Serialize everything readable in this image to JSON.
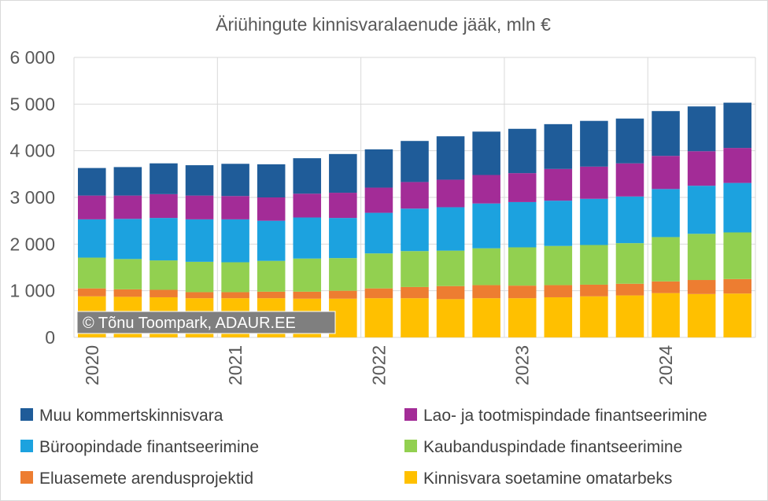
{
  "chart_data": {
    "type": "bar",
    "stacked": true,
    "title": "Äriühingute kinnisvaralaenude jääk, mln €",
    "xlabel": "",
    "ylabel": "",
    "ylim": [
      0,
      6000
    ],
    "yticks": [
      0,
      1000,
      2000,
      3000,
      4000,
      5000,
      6000
    ],
    "ytick_labels": [
      "0",
      "1 000",
      "2 000",
      "3 000",
      "4 000",
      "5 000",
      "6 000"
    ],
    "x_year_labels": [
      "2020",
      "2021",
      "2022",
      "2023",
      "2024"
    ],
    "categories": [
      "2020-Q1",
      "2020-Q2",
      "2020-Q3",
      "2020-Q4",
      "2021-Q1",
      "2021-Q2",
      "2021-Q3",
      "2021-Q4",
      "2022-Q1",
      "2022-Q2",
      "2022-Q3",
      "2022-Q4",
      "2023-Q1",
      "2023-Q2",
      "2023-Q3",
      "2023-Q4",
      "2024-Q1",
      "2024-Q2",
      "2024-Q3"
    ],
    "grid": true,
    "legend_position": "bottom",
    "watermark": "© Tõnu Toompark, ADAUR.EE",
    "series": [
      {
        "name": "Kinnisvara soetamine omatarbeks",
        "color": "#FFC000",
        "values": [
          880,
          870,
          860,
          840,
          840,
          840,
          830,
          830,
          840,
          840,
          820,
          840,
          840,
          860,
          880,
          900,
          950,
          930,
          940
        ]
      },
      {
        "name": "Eluasemete arendusprojektid",
        "color": "#ED7D31",
        "values": [
          170,
          160,
          160,
          130,
          130,
          140,
          150,
          170,
          210,
          240,
          280,
          280,
          270,
          260,
          250,
          250,
          250,
          300,
          310
        ]
      },
      {
        "name": "Kaubanduspindade finantseerimine",
        "color": "#92D050",
        "values": [
          660,
          650,
          630,
          650,
          640,
          660,
          710,
          700,
          750,
          770,
          760,
          790,
          820,
          840,
          850,
          870,
          950,
          990,
          1000
        ]
      },
      {
        "name": "Büroopindade finantseerimine",
        "color": "#1CA2DF",
        "values": [
          820,
          860,
          910,
          910,
          920,
          860,
          880,
          860,
          870,
          910,
          930,
          960,
          970,
          970,
          990,
          1000,
          1030,
          1030,
          1060
        ]
      },
      {
        "name": "Lao- ja tootmispindade  finantseerimine",
        "color": "#A32C97",
        "values": [
          510,
          500,
          510,
          510,
          500,
          500,
          510,
          540,
          540,
          570,
          590,
          610,
          620,
          680,
          690,
          710,
          710,
          740,
          750
        ]
      },
      {
        "name": "Muu kommertskinnisvara",
        "color": "#1F5C99",
        "values": [
          590,
          610,
          660,
          650,
          690,
          710,
          760,
          830,
          820,
          880,
          930,
          930,
          950,
          960,
          980,
          960,
          960,
          960,
          970
        ]
      }
    ]
  }
}
